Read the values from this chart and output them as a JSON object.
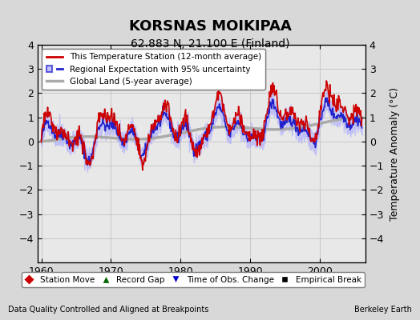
{
  "title": "KORSNAS MOIKIPAA",
  "subtitle": "62.883 N, 21.100 E (Finland)",
  "ylabel": "Temperature Anomaly (°C)",
  "xlabel_note": "Data Quality Controlled and Aligned at Breakpoints",
  "credit": "Berkeley Earth",
  "xlim": [
    1959.5,
    2006.5
  ],
  "ylim": [
    -5,
    4
  ],
  "yticks": [
    -4,
    -3,
    -2,
    -1,
    0,
    1,
    2,
    3,
    4
  ],
  "xticks": [
    1960,
    1970,
    1980,
    1990,
    2000
  ],
  "bg_color": "#d8d8d8",
  "plot_bg_color": "#e8e8e8",
  "legend1_items": [
    {
      "label": "This Temperature Station (12-month average)",
      "color": "#cc0000",
      "lw": 2
    },
    {
      "label": "Regional Expectation with 95% uncertainty",
      "color": "#3333cc",
      "lw": 2
    },
    {
      "label": "Global Land (5-year average)",
      "color": "#aaaaaa",
      "lw": 3
    }
  ],
  "legend2_items": [
    {
      "label": "Station Move",
      "marker": "D",
      "color": "#cc0000"
    },
    {
      "label": "Record Gap",
      "marker": "^",
      "color": "#006600"
    },
    {
      "label": "Time of Obs. Change",
      "marker": "v",
      "color": "#0000cc"
    },
    {
      "label": "Empirical Break",
      "marker": "s",
      "color": "#000000"
    }
  ]
}
